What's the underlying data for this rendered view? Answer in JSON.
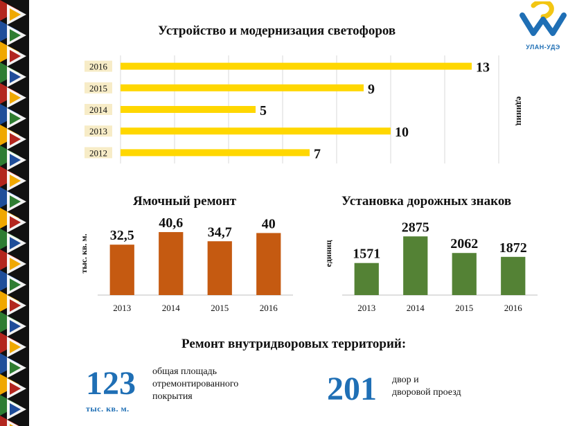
{
  "logo": {
    "text": "УЛАН-УДЭ",
    "colors": [
      "#f3c613",
      "#1f6fb5"
    ]
  },
  "border": {
    "colors": [
      "#b3261e",
      "#1f4e9a",
      "#f0a800",
      "#2e7d32",
      "#ffffff",
      "#111111"
    ]
  },
  "chart_data": [
    {
      "type": "bar",
      "orientation": "horizontal",
      "title": "Устройство и модернизация светофоров",
      "ylabel": "единиц",
      "categories": [
        "2016",
        "2015",
        "2014",
        "2013",
        "2012"
      ],
      "values": [
        13,
        9,
        5,
        10,
        7
      ],
      "labels": [
        "13",
        "9",
        "5",
        "10",
        "7"
      ],
      "xlim": [
        0,
        14
      ],
      "grid": true,
      "color": "#ffd700"
    },
    {
      "type": "bar",
      "title": "Ямочный ремонт",
      "ylabel": "тыс. кв. м.",
      "categories": [
        "2013",
        "2014",
        "2015",
        "2016"
      ],
      "values": [
        32.5,
        40.6,
        34.7,
        40
      ],
      "labels": [
        "32,5",
        "40,6",
        "34,7",
        "40"
      ],
      "ylim": [
        0,
        50
      ],
      "color": "#c55a11"
    },
    {
      "type": "bar",
      "title": "Установка дорожных знаков",
      "ylabel": "единиц",
      "categories": [
        "2013",
        "2014",
        "2015",
        "2016"
      ],
      "values": [
        1571,
        2875,
        2062,
        1872
      ],
      "labels": [
        "1571",
        "2875",
        "2062",
        "1872"
      ],
      "ylim": [
        0,
        3800
      ],
      "color": "#548235"
    }
  ],
  "yards": {
    "title": "Ремонт внутридворовых территорий:",
    "area_value": "123",
    "area_unit": "тыс. кв. м.",
    "area_desc": [
      "общая площадь",
      "отремонтированного",
      "покрытия"
    ],
    "yards_value": "201",
    "yards_desc": [
      "двор и",
      "дворовой проезд"
    ]
  }
}
